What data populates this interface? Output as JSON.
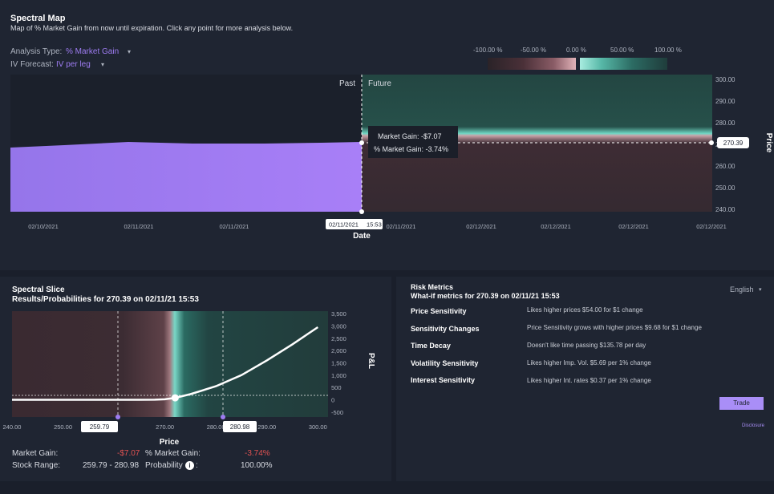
{
  "spectral_map": {
    "title": "Spectral Map",
    "subtitle": "Map of % Market Gain from now until expiration. Click any point for more analysis below.",
    "analysis_type_label": "Analysis Type:",
    "analysis_type_value": "% Market Gain",
    "iv_forecast_label": "IV Forecast:",
    "iv_forecast_value": "IV per leg",
    "legend_ticks": [
      "-100.00 %",
      "-50.00 %",
      "0.00 %",
      "50.00 %",
      "100.00 %"
    ],
    "past_label": "Past",
    "future_label": "Future",
    "tooltip_gain": "Market Gain: -$7.07",
    "tooltip_pct": "% Market Gain: -3.74%",
    "price_badge": "270.39",
    "date_badge_date": "02/11/2021",
    "date_badge_time": "15:53",
    "x_axis_label": "Date",
    "y_axis_label": "Price",
    "x_ticks": [
      "02/10/2021",
      "02/11/2021",
      "02/11/2021",
      "02/11/2021",
      "02/11/2021",
      "02/12/2021",
      "02/12/2021",
      "02/12/2021",
      "02/12/2021"
    ],
    "y_ticks": [
      "300.00",
      "290.00",
      "280.00",
      "270.00",
      "260.00",
      "250.00",
      "240.00"
    ],
    "colors": {
      "past_fill": "#a27ef5",
      "gain": "#244a46",
      "loss": "#3a2a31",
      "accent": "#9e7cf2"
    }
  },
  "spectral_slice": {
    "title": "Spectral Slice",
    "subtitle": "Results/Probabilities for 270.39 on 02/11/21 15:53",
    "x_axis_label": "Price",
    "y_axis_label": "P&L",
    "x_ticks": [
      "240.00",
      "250.00",
      "260.00",
      "270.00",
      "280.00",
      "290.00",
      "300.00"
    ],
    "y_ticks": [
      "3,500",
      "3,000",
      "2,500",
      "2,000",
      "1,500",
      "1,000",
      "500",
      "0",
      "-500"
    ],
    "range_low_badge": "259.79",
    "range_high_badge": "280.98",
    "stats": {
      "market_gain_label": "Market Gain:",
      "market_gain_value": "-$7.07",
      "pct_gain_label": "% Market Gain:",
      "pct_gain_value": "-3.74%",
      "stock_range_label": "Stock Range:",
      "stock_range_value": "259.79 - 280.98",
      "probability_label": "Probability",
      "probability_colon": ":",
      "probability_value": "100.00%"
    }
  },
  "chart_data": {
    "type": "line",
    "title": "Spectral Slice",
    "xlabel": "Price",
    "ylabel": "P&L",
    "xlim": [
      240,
      302
    ],
    "ylim": [
      -700,
      3600
    ],
    "x": [
      240,
      250,
      255,
      260,
      265,
      268,
      270,
      272,
      275,
      280,
      285,
      290,
      295,
      300
    ],
    "series": [
      {
        "values": [
          0,
          0,
          0,
          0,
          0,
          5,
          20,
          80,
          230,
          550,
          1000,
          1600,
          2250,
          2950
        ]
      }
    ]
  },
  "risk_metrics": {
    "title": "Risk Metrics",
    "subtitle": "What-if metrics for 270.39 on 02/11/21 15:53",
    "language": "English",
    "rows": [
      {
        "label": "Price Sensitivity",
        "value": "Likes higher prices $54.00 for $1 change"
      },
      {
        "label": "Sensitivity Changes",
        "value": "Price Sensitivity grows with higher prices $9.68 for $1 change"
      },
      {
        "label": "Time Decay",
        "value": "Doesn't like time passing $135.78 per day"
      },
      {
        "label": "Volatility Sensitivity",
        "value": "Likes higher Imp. Vol. $5.69 per 1% change"
      },
      {
        "label": "Interest Sensitivity",
        "value": "Likes higher Int. rates $0.37 per 1% change"
      }
    ],
    "trade_button": "Trade",
    "disclosure": "Disclosure"
  }
}
